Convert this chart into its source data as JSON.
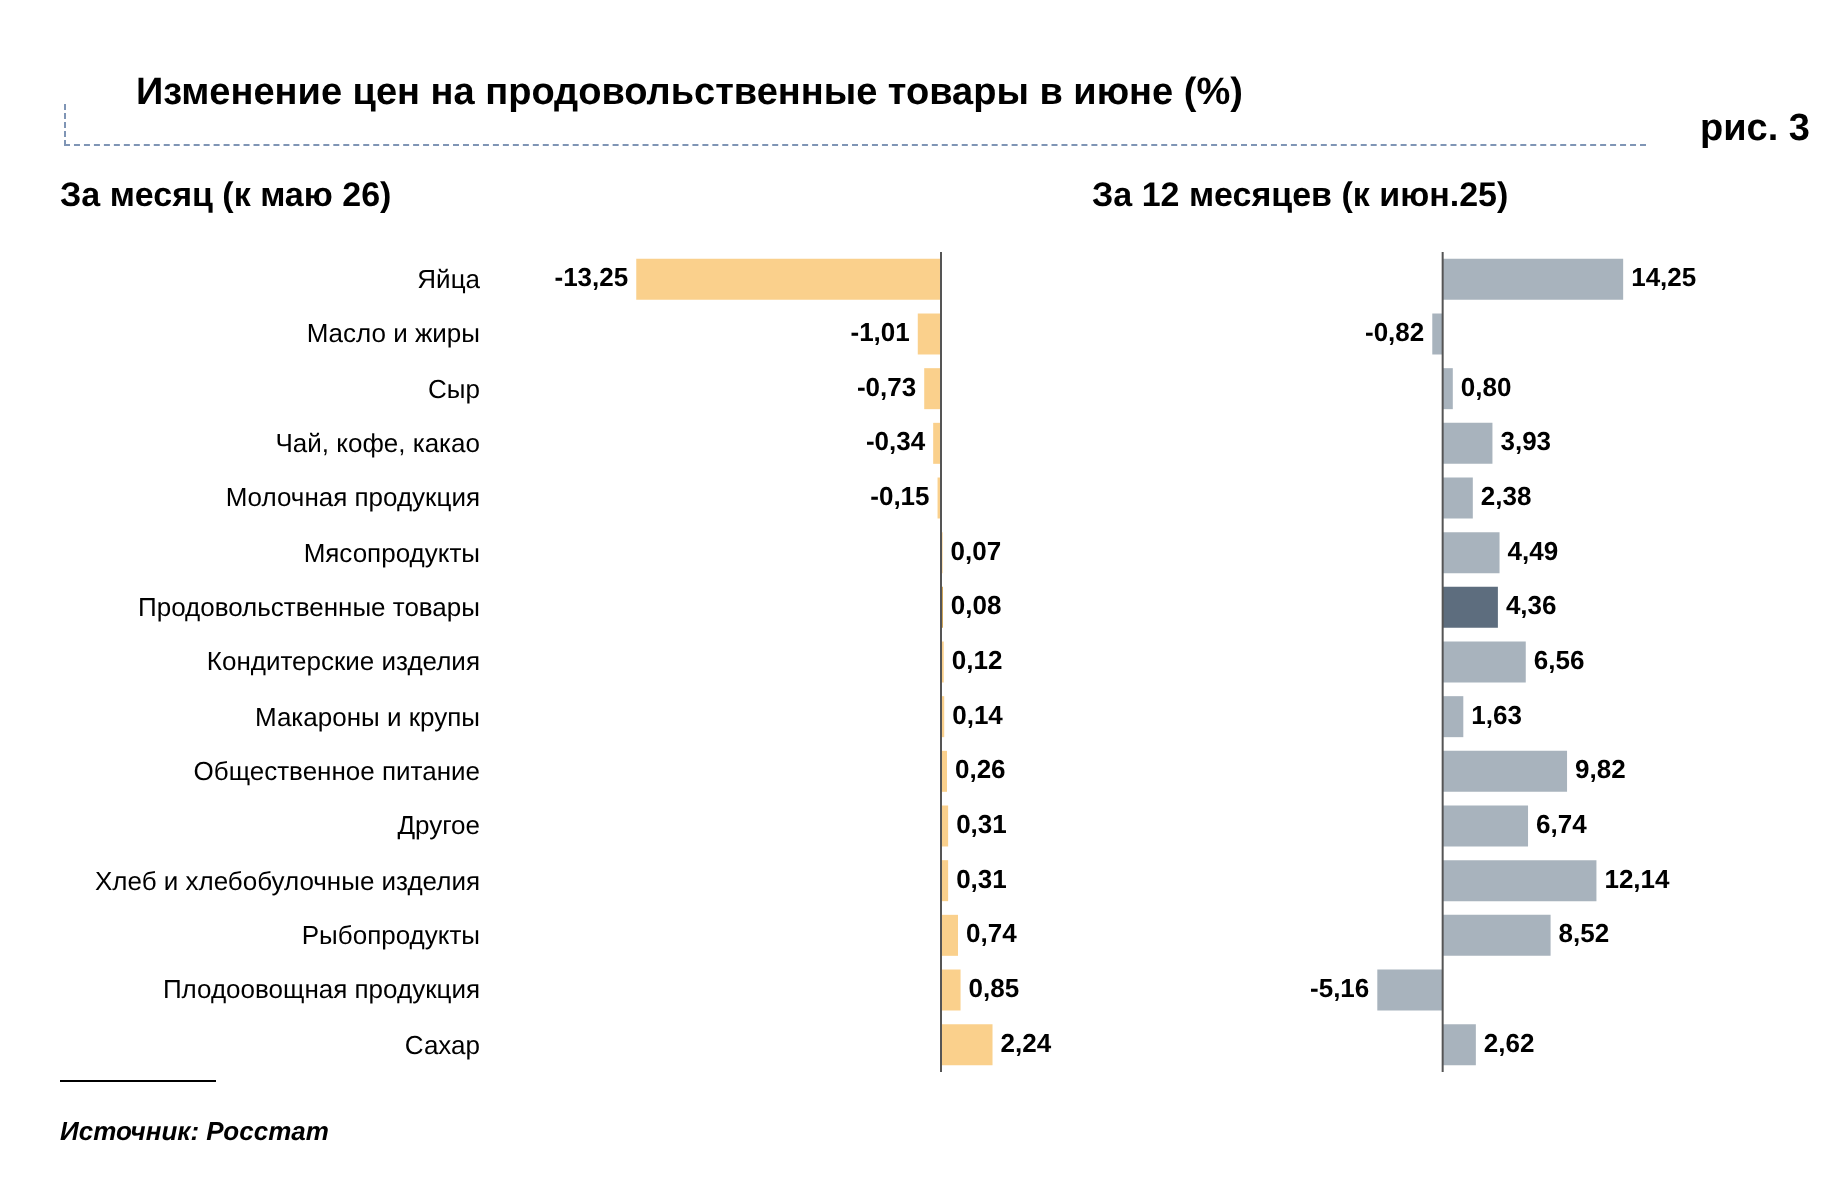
{
  "chart_data": [
    {
      "type": "bar",
      "orientation": "horizontal",
      "title": "Изменение цен на продовольственные товары в июне (%)",
      "subtitle": "За месяц (к маю 26)",
      "categories": [
        "Яйца",
        "Масло и жиры",
        "Сыр",
        "Чай, кофе, какао",
        "Молочная продукция",
        "Мясопродукты",
        "Продовольственные товары",
        "Кондитерские изделия",
        "Макароны и крупы",
        "Общественное питание",
        "Другое",
        "Хлеб и хлебобулочные изделия",
        "Рыбопродукты",
        "Плодоовощная продукция",
        "Сахар"
      ],
      "values": [
        -13.25,
        -1.01,
        -0.73,
        -0.34,
        -0.15,
        0.07,
        0.08,
        0.12,
        0.14,
        0.26,
        0.31,
        0.31,
        0.74,
        0.85,
        2.24
      ],
      "colors": [
        "#fad08c",
        "#fad08c",
        "#fad08c",
        "#fad08c",
        "#fad08c",
        "#fad08c",
        "#c8963c",
        "#fad08c",
        "#fad08c",
        "#fad08c",
        "#fad08c",
        "#fad08c",
        "#fad08c",
        "#fad08c",
        "#fad08c"
      ],
      "value_labels": [
        "-13,25",
        "-1,01",
        "-0,73",
        "-0,34",
        "-0,15",
        "0,07",
        "0,08",
        "0,12",
        "0,14",
        "0,26",
        "0,31",
        "0,31",
        "0,74",
        "0,85",
        "2,24"
      ],
      "tick_labels": "y",
      "annotations": [
        "рис. 3",
        "Источник: Росстат"
      ]
    },
    {
      "type": "bar",
      "orientation": "horizontal",
      "subtitle": "За 12 месяцев (к июн.25)",
      "categories": [
        null,
        null,
        null,
        null,
        null,
        null,
        null,
        null,
        null,
        null,
        null,
        null,
        null,
        null,
        null
      ],
      "values": [
        14.25,
        -0.82,
        0.8,
        3.93,
        2.38,
        4.49,
        4.36,
        6.56,
        1.63,
        9.82,
        6.74,
        12.14,
        8.52,
        -5.16,
        2.62
      ],
      "colors": [
        "#a8b3bd",
        "#a8b3bd",
        "#a8b3bd",
        "#a8b3bd",
        "#a8b3bd",
        "#a8b3bd",
        "#5d6d7e",
        "#a8b3bd",
        "#a8b3bd",
        "#a8b3bd",
        "#a8b3bd",
        "#a8b3bd",
        "#a8b3bd",
        "#a8b3bd",
        "#a8b3bd"
      ],
      "value_labels": [
        "14,25",
        "-0,82",
        "0,80",
        "3,93",
        "2,38",
        "4,49",
        "4,36",
        "6,56",
        "1,63",
        "9,82",
        "6,74",
        "12,14",
        "8,52",
        "-5,16",
        "2,62"
      ],
      "tick_labels": false
    }
  ]
}
